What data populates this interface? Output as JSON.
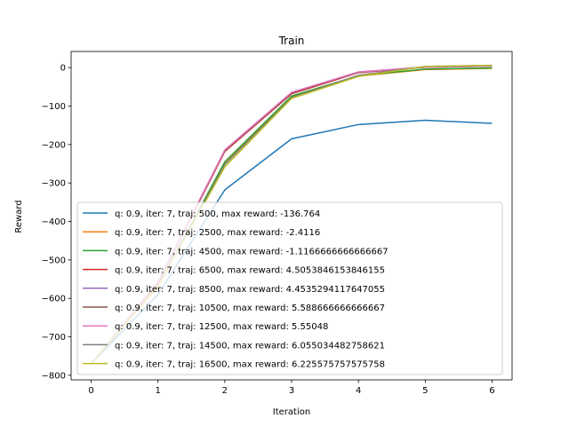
{
  "chart_data": {
    "type": "line",
    "title": "Train",
    "xlabel": "Iteration",
    "ylabel": "Reward",
    "xlim": [
      -0.3,
      6.3
    ],
    "ylim": [
      -812,
      42
    ],
    "xticks": [
      0,
      1,
      2,
      3,
      4,
      5,
      6
    ],
    "yticks": [
      -800,
      -700,
      -600,
      -500,
      -400,
      -300,
      -200,
      -100,
      0
    ],
    "grid": false,
    "legend_position": "lower-right",
    "x": [
      0,
      1,
      2,
      3,
      4,
      5,
      6
    ],
    "series": [
      {
        "name": "q: 0.9, iter: 7, traj: 500, max reward: -136.764",
        "color": "#1f77b4",
        "values": [
          -770,
          -590,
          -318,
          -185,
          -148,
          -137,
          -145
        ]
      },
      {
        "name": "q: 0.9, iter: 7, traj: 2500, max reward: -2.4116",
        "color": "#ff7f0e",
        "values": [
          -770,
          -570,
          -250,
          -76,
          -22,
          -5,
          -2
        ]
      },
      {
        "name": "q: 0.9, iter: 7, traj: 4500, max reward: -1.1166666666666667",
        "color": "#2ca02c",
        "values": [
          -770,
          -568,
          -245,
          -74,
          -21,
          -4,
          -1
        ]
      },
      {
        "name": "q: 0.9, iter: 7, traj: 6500, max reward: 4.5053846153846155",
        "color": "#d62728",
        "values": [
          -770,
          -560,
          -218,
          -68,
          -13,
          1,
          4
        ]
      },
      {
        "name": "q: 0.9, iter: 7, traj: 8500, max reward: 4.4535294117647055",
        "color": "#9467bd",
        "values": [
          -770,
          -558,
          -215,
          -65,
          -12,
          1,
          4
        ]
      },
      {
        "name": "q: 0.9, iter: 7, traj: 10500, max reward: 5.588666666666667",
        "color": "#8c564b",
        "values": [
          -770,
          -559,
          -216,
          -66,
          -12,
          2,
          5
        ]
      },
      {
        "name": "q: 0.9, iter: 7, traj: 12500, max reward: 5.55048",
        "color": "#e377c2",
        "values": [
          -770,
          -557,
          -214,
          -64,
          -11,
          2,
          5
        ]
      },
      {
        "name": "q: 0.9, iter: 7, traj: 14500, max reward: 6.055034482758621",
        "color": "#7f7f7f",
        "values": [
          -770,
          -566,
          -252,
          -78,
          -20,
          3,
          6
        ]
      },
      {
        "name": "q: 0.9, iter: 7, traj: 16500, max reward: 6.225575757575758",
        "color": "#bcbd22",
        "values": [
          -770,
          -568,
          -258,
          -80,
          -23,
          3,
          6
        ]
      }
    ]
  }
}
